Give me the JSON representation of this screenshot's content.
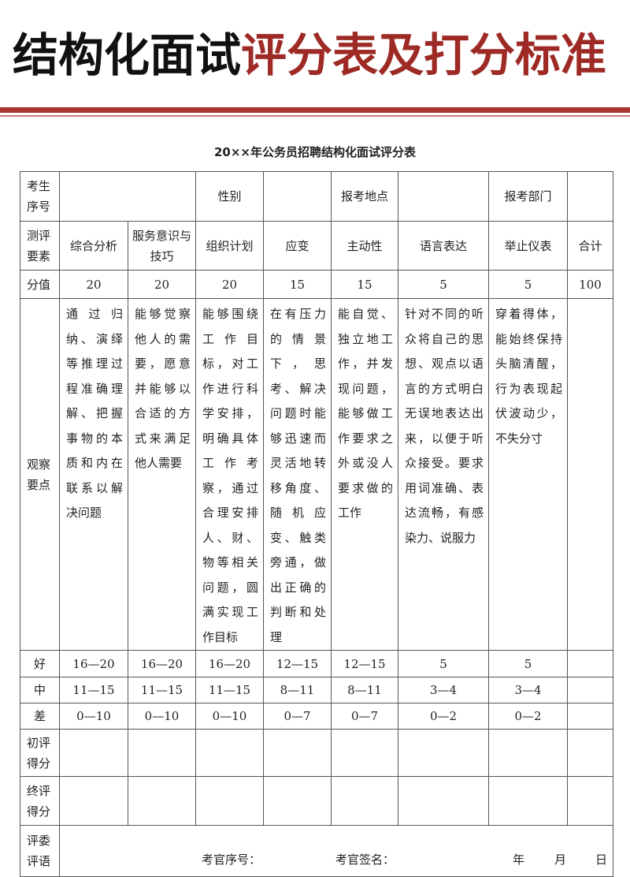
{
  "header": {
    "title_black": "结构化面试",
    "title_red": "评分表及打分标准",
    "subtitle": "20××年公务员招聘结构化面试评分表"
  },
  "colors": {
    "accent": "#a83430",
    "title_red": "#9e2a26"
  },
  "table": {
    "row1": {
      "c1": "考生序号",
      "c2": "性别",
      "c3": "报考地点",
      "c4": "报考部门"
    },
    "criteria_label": "测评要素",
    "criteria": [
      "综合分析",
      "服务意识与技巧",
      "组织计划",
      "应变",
      "主动性",
      "语言表达",
      "举止仪表",
      "合计"
    ],
    "score_label": "分值",
    "scores": [
      "20",
      "20",
      "20",
      "15",
      "15",
      "5",
      "5",
      "100"
    ],
    "obs_label": "观察要点",
    "observations": [
      "通过归纳、演绎等推理过程准确理解、把握事物的本质和内在联系以解决问题",
      "能够觉察他人的需要，愿意并能够以合适的方式来满足他人需要",
      "能够围绕工作目标，对工作进行科学安排，明确具体工作考察，通过合理安排人、财、物等相关问题，圆满实现工作目标",
      "在有压力的情景下，思考、解决问题时能够迅速而灵活地转移角度、随机应变、触类旁通，做出正确的判断和处理",
      "能自觉、独立地工作，并发现问题，能够做工作要求之外或没人要求做的工作",
      "针对不同的听众将自己的思想、观点以语言的方式明白无误地表达出来，以便于听众接受。要求用词准确、表达流畅，有感染力、说服力",
      "穿着得体，能始终保持头脑清醒，行为表现起伏波动少，不失分寸",
      ""
    ],
    "grades": [
      {
        "label": "好",
        "values": [
          "16—20",
          "16—20",
          "16—20",
          "12—15",
          "12—15",
          "5",
          "5",
          ""
        ]
      },
      {
        "label": "中",
        "values": [
          "11—15",
          "11—15",
          "11—15",
          "8—11",
          "8—11",
          "3—4",
          "3—4",
          ""
        ]
      },
      {
        "label": "差",
        "values": [
          "0—10",
          "0—10",
          "0—10",
          "0—7",
          "0—7",
          "0—2",
          "0—2",
          ""
        ]
      }
    ],
    "initial_label": "初评得分",
    "final_label": "终评得分",
    "comment_label": "评委评语",
    "footer": {
      "examiner_no": "考官序号：",
      "examiner_sign": "考官签名：",
      "year": "年",
      "month": "月",
      "day": "日"
    }
  }
}
